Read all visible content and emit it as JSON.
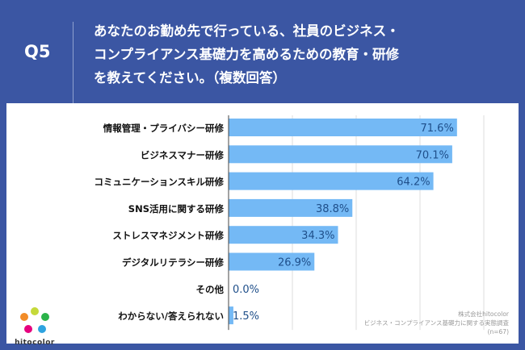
{
  "header": {
    "question": "Q5",
    "title_lines": [
      "あなたのお勤め先で行っている、社員のビジネス・",
      "コンプライアンス基礎力を高めるための教育・研修",
      "を教えてください。（複数回答）"
    ]
  },
  "chart_data": {
    "type": "bar",
    "orientation": "horizontal",
    "categories": [
      "情報管理・プライバシー研修",
      "ビジネスマナー研修",
      "コミュニケーションスキル研修",
      "SNS活用に関する研修",
      "ストレスマネジメント研修",
      "デジタルリテラシー研修",
      "その他",
      "わからない/答えられない"
    ],
    "values": [
      71.6,
      70.1,
      64.2,
      38.8,
      34.3,
      26.9,
      0.0,
      1.5
    ],
    "labels": [
      "71.6%",
      "70.1%",
      "64.2%",
      "38.8%",
      "34.3%",
      "26.9%",
      "0.0%",
      "1.5%"
    ],
    "xlim": [
      0,
      90
    ],
    "grid": true,
    "bar_color": "#74b9f5",
    "label_color": "#1f4f8a"
  },
  "logo": {
    "text": "hitocolor"
  },
  "credit": {
    "company": "株式会社hitocolor",
    "survey": "ビジネス・コンプライアンス基礎力に関する実態調査",
    "n": "(n=67)"
  }
}
